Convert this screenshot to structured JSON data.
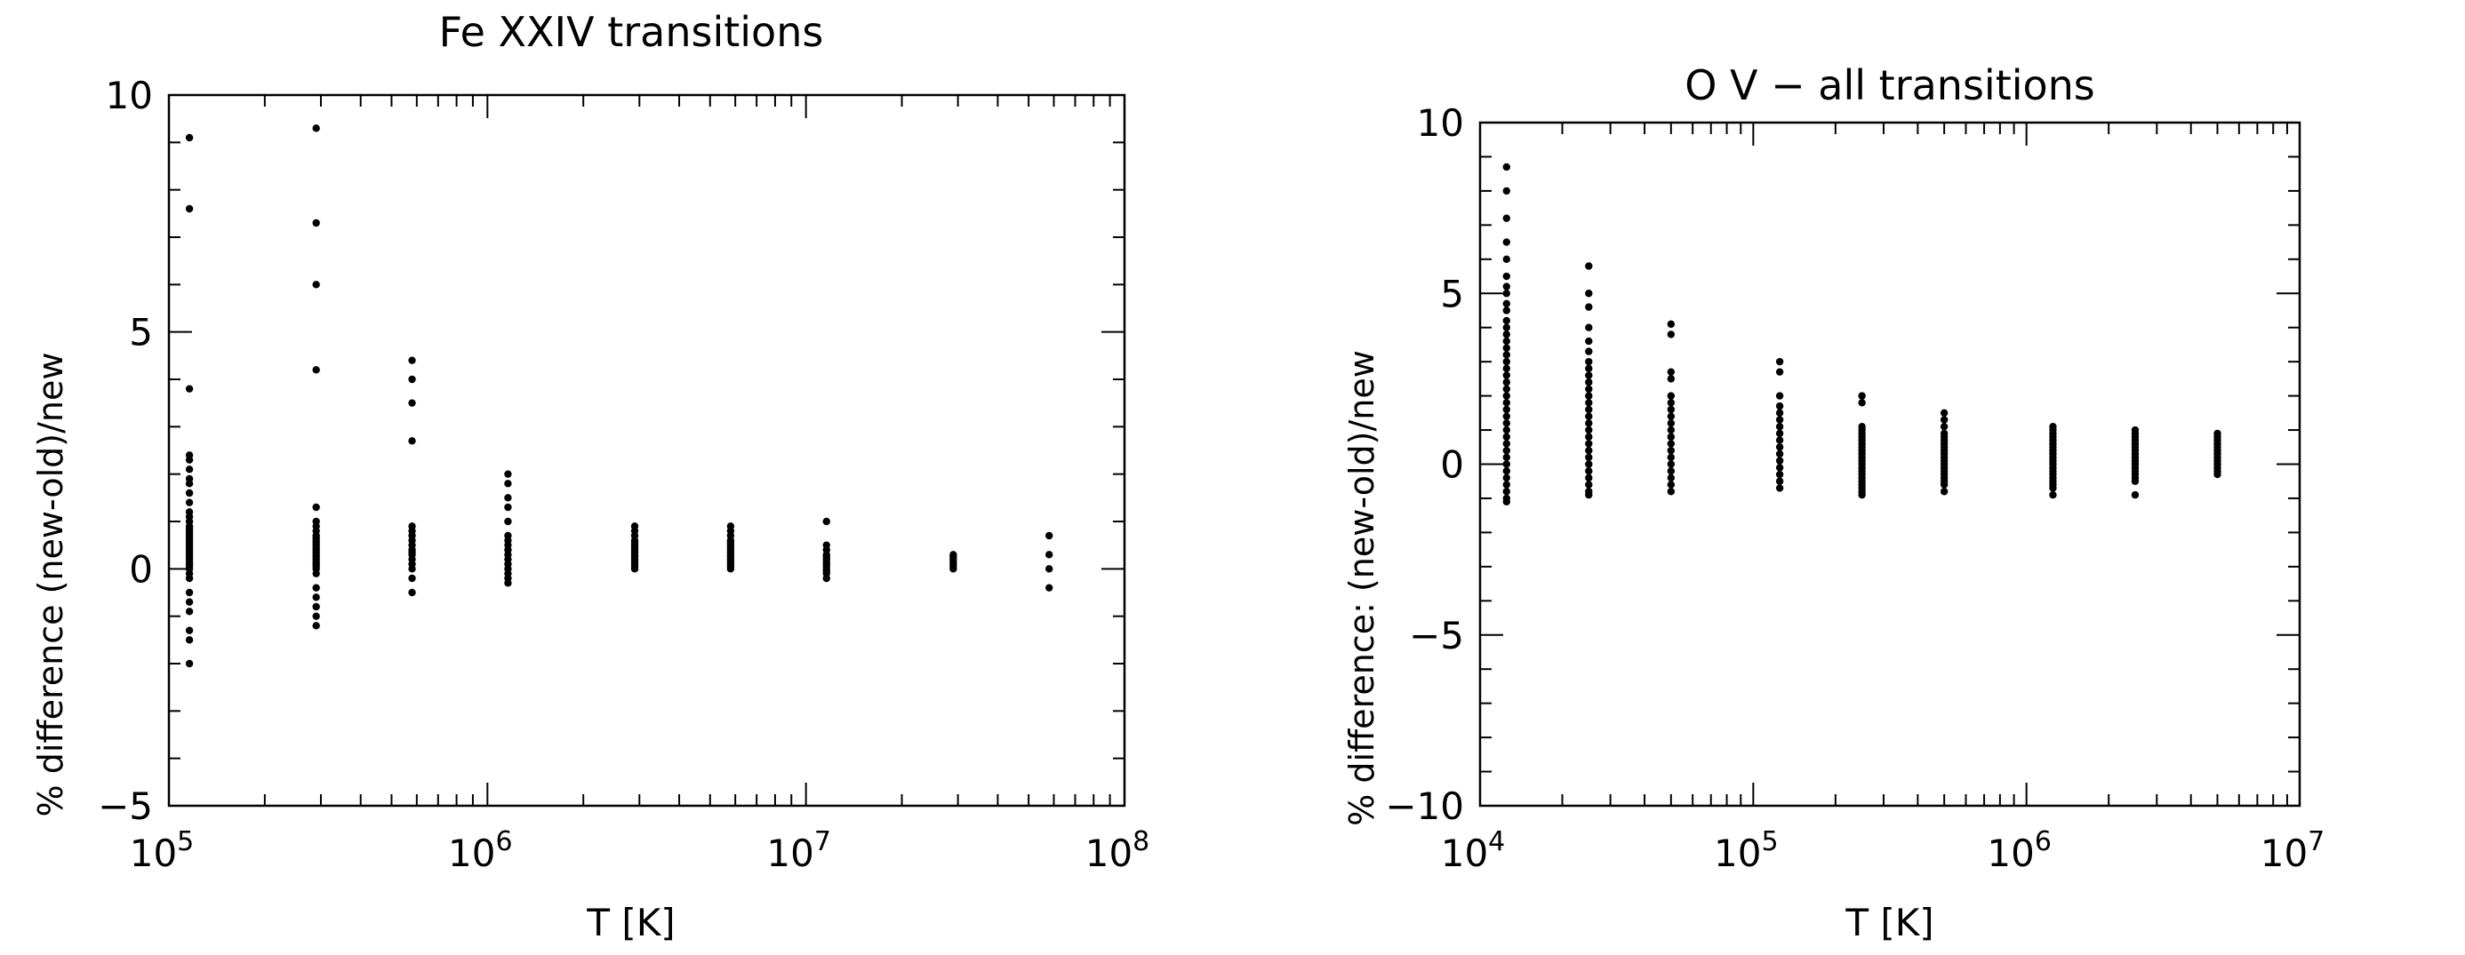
{
  "chart_data": [
    {
      "type": "scatter",
      "title": "Fe XXIV transitions",
      "xlabel": "T [K]",
      "ylabel": "% difference (new-old)/new",
      "x_scale": "log",
      "xlim": [
        100000,
        100000000
      ],
      "ylim": [
        -5,
        10
      ],
      "x_ticks": [
        {
          "value": 100000,
          "base": "10",
          "exp": "5"
        },
        {
          "value": 1000000,
          "base": "10",
          "exp": "6"
        },
        {
          "value": 10000000,
          "base": "10",
          "exp": "7"
        },
        {
          "value": 100000000,
          "base": "10",
          "exp": "8"
        }
      ],
      "y_ticks": [
        {
          "value": -5,
          "label": "−5"
        },
        {
          "value": 0,
          "label": "0"
        },
        {
          "value": 5,
          "label": "5"
        },
        {
          "value": 10,
          "label": "10"
        }
      ],
      "grid": false,
      "series": [
        {
          "x": 116000,
          "y": [
            9.1,
            7.6,
            3.8,
            2.4,
            2.3,
            2.1,
            1.9,
            1.8,
            1.6,
            1.4,
            1.2,
            1.1,
            1.0,
            0.9,
            0.85,
            0.8,
            0.75,
            0.7,
            0.65,
            0.6,
            0.55,
            0.5,
            0.45,
            0.4,
            0.35,
            0.3,
            0.25,
            0.2,
            0.15,
            0.1,
            0.05,
            0.0,
            -0.1,
            -0.2,
            -0.5,
            -0.7,
            -0.9,
            -1.3,
            -1.5,
            -2.0
          ]
        },
        {
          "x": 290000,
          "y": [
            9.3,
            7.3,
            6.0,
            4.2,
            1.3,
            1.0,
            0.9,
            0.8,
            0.7,
            0.65,
            0.6,
            0.55,
            0.5,
            0.45,
            0.4,
            0.35,
            0.3,
            0.25,
            0.2,
            0.15,
            0.1,
            0.05,
            0.0,
            -0.1,
            -0.4,
            -0.6,
            -0.8,
            -1.0,
            -1.2
          ]
        },
        {
          "x": 580000,
          "y": [
            4.4,
            4.0,
            3.5,
            2.7,
            0.9,
            0.8,
            0.7,
            0.6,
            0.5,
            0.4,
            0.35,
            0.3,
            0.2,
            0.1,
            0.0,
            -0.2,
            -0.5
          ]
        },
        {
          "x": 1160000,
          "y": [
            2.0,
            1.8,
            1.5,
            1.3,
            1.0,
            0.7,
            0.6,
            0.5,
            0.4,
            0.3,
            0.2,
            0.1,
            0.0,
            -0.1,
            -0.2,
            -0.3
          ]
        },
        {
          "x": 2900000,
          "y": [
            0.9,
            0.8,
            0.7,
            0.6,
            0.55,
            0.5,
            0.45,
            0.4,
            0.35,
            0.3,
            0.25,
            0.2,
            0.15,
            0.1,
            0.05,
            0.0
          ]
        },
        {
          "x": 5800000,
          "y": [
            0.9,
            0.8,
            0.7,
            0.6,
            0.55,
            0.5,
            0.45,
            0.4,
            0.35,
            0.3,
            0.25,
            0.2,
            0.15,
            0.1,
            0.05,
            0.0
          ]
        },
        {
          "x": 11600000,
          "y": [
            1.0,
            0.5,
            0.4,
            0.3,
            0.25,
            0.2,
            0.15,
            0.1,
            0.05,
            0.0,
            -0.05,
            -0.1,
            -0.2
          ]
        },
        {
          "x": 29000000,
          "y": [
            0.3,
            0.25,
            0.2,
            0.15,
            0.1,
            0.05,
            0.0
          ]
        },
        {
          "x": 58000000,
          "y": [
            0.7,
            0.3,
            0.0,
            -0.4
          ]
        }
      ]
    },
    {
      "type": "scatter",
      "title": "O V − all transitions",
      "xlabel": "T [K]",
      "ylabel": "% difference: (new-old)/new",
      "x_scale": "log",
      "xlim": [
        10000,
        10000000
      ],
      "ylim": [
        -10,
        10
      ],
      "x_ticks": [
        {
          "value": 10000,
          "base": "10",
          "exp": "4"
        },
        {
          "value": 100000,
          "base": "10",
          "exp": "5"
        },
        {
          "value": 1000000,
          "base": "10",
          "exp": "6"
        },
        {
          "value": 10000000,
          "base": "10",
          "exp": "7"
        }
      ],
      "y_ticks": [
        {
          "value": -10,
          "label": "−10"
        },
        {
          "value": -5,
          "label": "−5"
        },
        {
          "value": 0,
          "label": "0"
        },
        {
          "value": 5,
          "label": "5"
        },
        {
          "value": 10,
          "label": "10"
        }
      ],
      "grid": false,
      "series": [
        {
          "x": 12500,
          "y": [
            8.7,
            8.0,
            7.2,
            6.5,
            6.0,
            5.5,
            5.2,
            5.0,
            4.7,
            4.5,
            4.2,
            4.0,
            3.8,
            3.6,
            3.4,
            3.2,
            3.0,
            2.8,
            2.6,
            2.4,
            2.2,
            2.0,
            1.8,
            1.6,
            1.4,
            1.2,
            1.0,
            0.8,
            0.6,
            0.4,
            0.2,
            0.0,
            -0.2,
            -0.4,
            -0.6,
            -0.8,
            -1.0,
            -1.1
          ]
        },
        {
          "x": 25000,
          "y": [
            5.8,
            5.0,
            4.6,
            4.0,
            3.6,
            3.3,
            3.0,
            2.8,
            2.6,
            2.4,
            2.2,
            2.0,
            1.8,
            1.6,
            1.4,
            1.2,
            1.0,
            0.8,
            0.6,
            0.4,
            0.2,
            0.0,
            -0.2,
            -0.4,
            -0.6,
            -0.8,
            -0.9
          ]
        },
        {
          "x": 50000,
          "y": [
            4.1,
            3.8,
            2.7,
            2.5,
            2.0,
            1.8,
            1.6,
            1.4,
            1.2,
            1.0,
            0.8,
            0.6,
            0.4,
            0.2,
            0.0,
            -0.2,
            -0.4,
            -0.6,
            -0.8
          ]
        },
        {
          "x": 125000,
          "y": [
            3.0,
            2.7,
            2.0,
            1.7,
            1.5,
            1.3,
            1.1,
            0.9,
            0.7,
            0.5,
            0.3,
            0.1,
            -0.1,
            -0.3,
            -0.5,
            -0.7
          ]
        },
        {
          "x": 250000,
          "y": [
            2.0,
            1.8,
            1.1,
            1.0,
            0.9,
            0.8,
            0.7,
            0.6,
            0.5,
            0.4,
            0.3,
            0.2,
            0.1,
            0.0,
            -0.1,
            -0.2,
            -0.3,
            -0.4,
            -0.5,
            -0.6,
            -0.7,
            -0.8,
            -0.9
          ]
        },
        {
          "x": 500000,
          "y": [
            1.5,
            1.3,
            1.1,
            0.9,
            0.8,
            0.7,
            0.6,
            0.5,
            0.4,
            0.3,
            0.2,
            0.1,
            0.0,
            -0.1,
            -0.2,
            -0.3,
            -0.4,
            -0.5,
            -0.6,
            -0.8
          ]
        },
        {
          "x": 1250000,
          "y": [
            1.1,
            1.0,
            0.9,
            0.8,
            0.7,
            0.6,
            0.5,
            0.4,
            0.3,
            0.2,
            0.1,
            0.0,
            -0.1,
            -0.2,
            -0.3,
            -0.4,
            -0.5,
            -0.6,
            -0.7,
            -0.9
          ]
        },
        {
          "x": 2500000,
          "y": [
            1.0,
            0.9,
            0.8,
            0.7,
            0.6,
            0.5,
            0.4,
            0.3,
            0.2,
            0.1,
            0.0,
            -0.1,
            -0.2,
            -0.3,
            -0.4,
            -0.5,
            -0.9
          ]
        },
        {
          "x": 5000000,
          "y": [
            0.9,
            0.8,
            0.7,
            0.6,
            0.5,
            0.4,
            0.3,
            0.2,
            0.1,
            0.0,
            -0.1,
            -0.2,
            -0.3
          ]
        }
      ]
    }
  ]
}
